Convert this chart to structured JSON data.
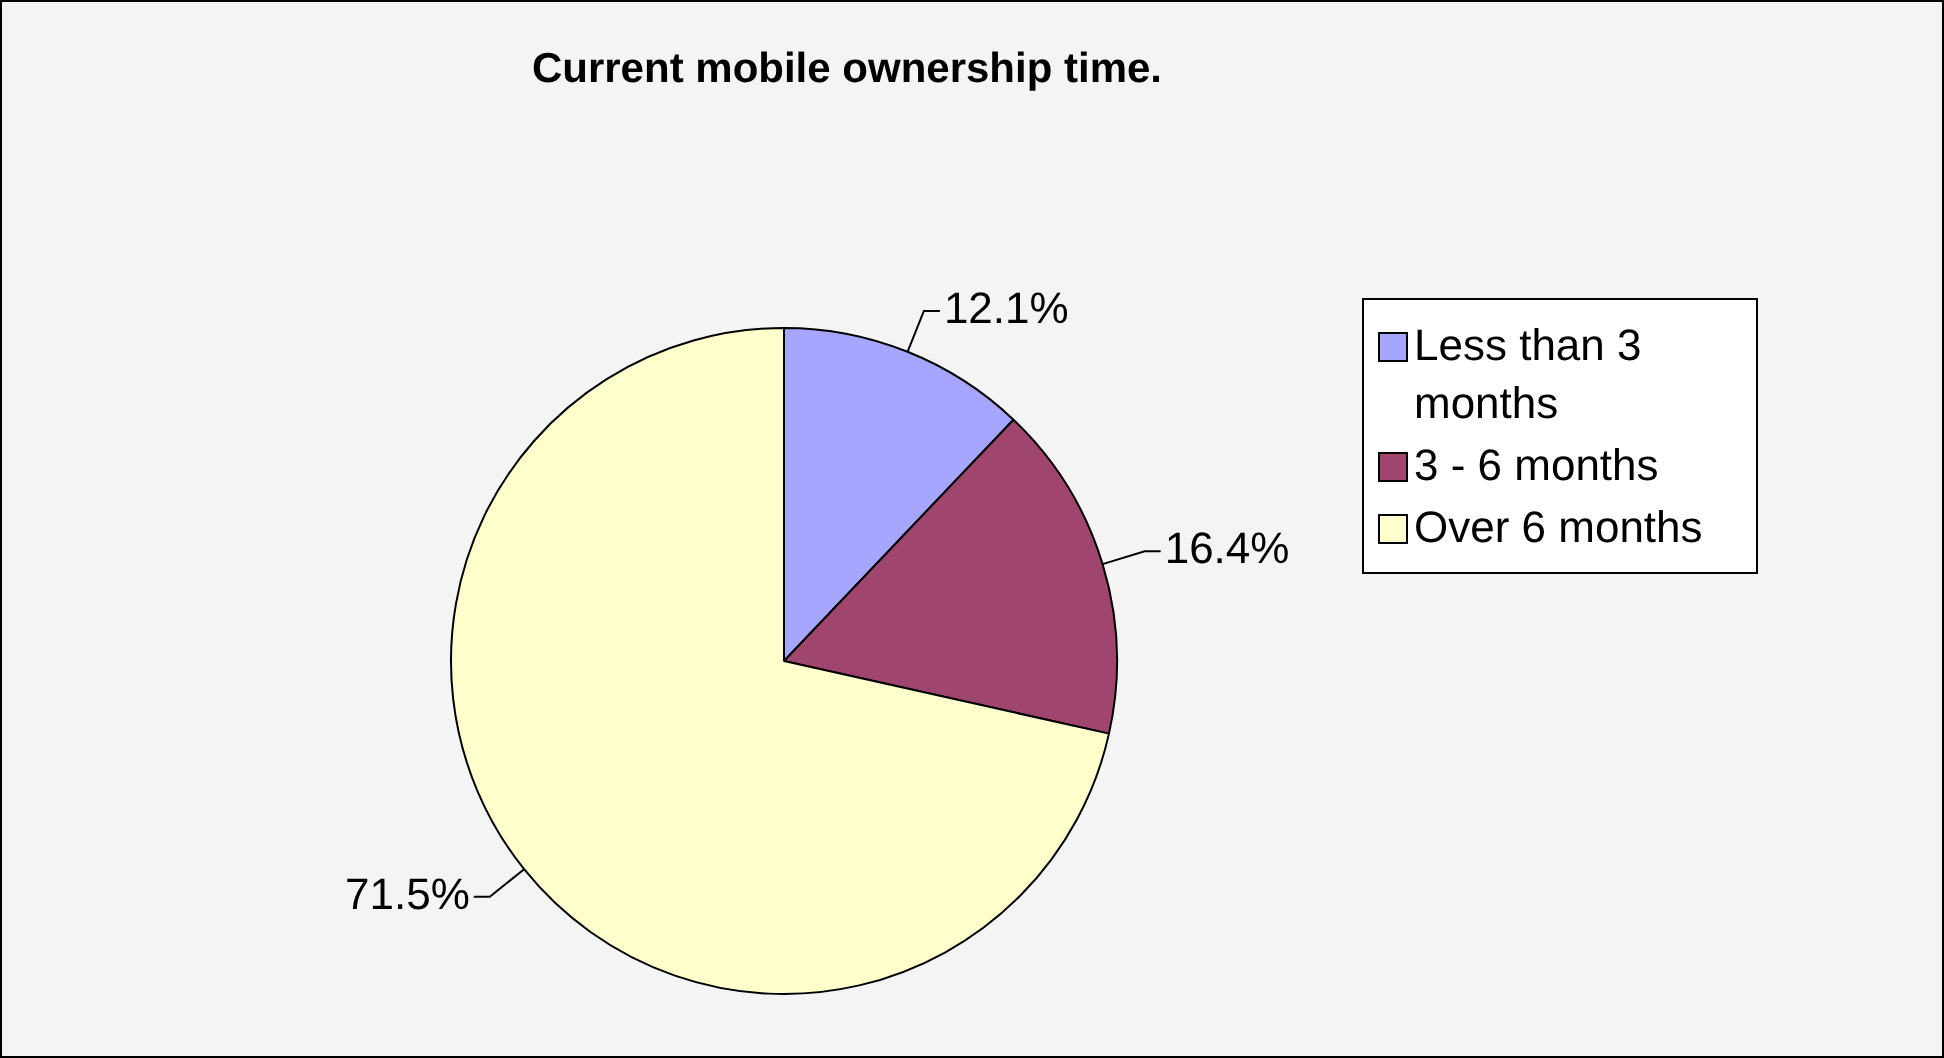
{
  "chart_data": {
    "type": "pie",
    "title": "Current mobile ownership time.",
    "categories": [
      "Less than 3 months",
      "3 - 6 months",
      "Over 6 months"
    ],
    "values": [
      12.1,
      16.4,
      71.5
    ],
    "colors": [
      "#a6a6ff",
      "#a0466e",
      "#ffffcc"
    ],
    "value_labels": [
      "12.1%",
      "16.4%",
      "71.5%"
    ],
    "legend": "right"
  }
}
